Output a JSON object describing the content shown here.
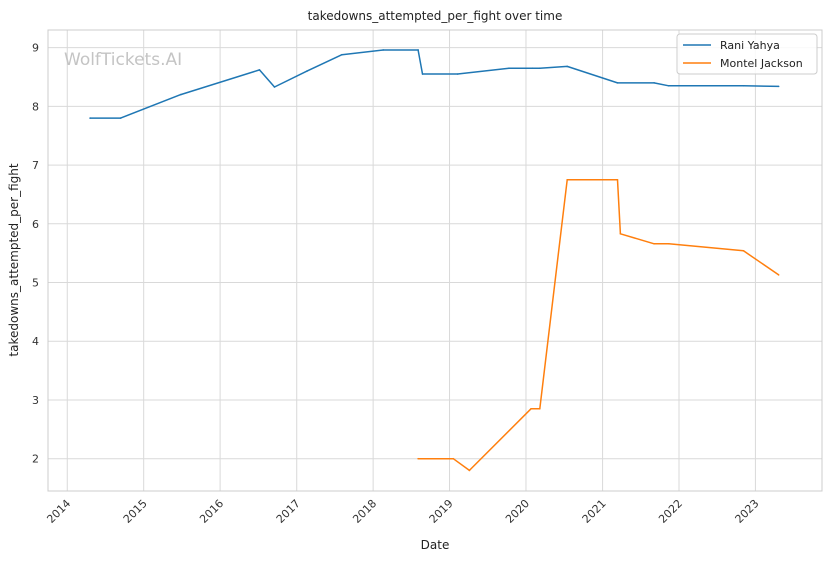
{
  "chart_data": {
    "type": "line",
    "title": "takedowns_attempted_per_fight over time",
    "xlabel": "Date",
    "ylabel": "takedowns_attempted_per_fight",
    "watermark": "WolfTickets.AI",
    "x_ticks": [
      "2014",
      "2015",
      "2016",
      "2017",
      "2018",
      "2019",
      "2020",
      "2021",
      "2022",
      "2023"
    ],
    "y_ticks": [
      "2",
      "3",
      "4",
      "5",
      "6",
      "7",
      "8",
      "9"
    ],
    "xlim": [
      "2013-10-01",
      "2023-11-15"
    ],
    "ylim": [
      1.45,
      9.3
    ],
    "grid": true,
    "legend_position": "top-right",
    "colors": {
      "Rani Yahya": "#1f77b4",
      "Montel Jackson": "#ff7f0e"
    },
    "series": [
      {
        "name": "Rani Yahya",
        "x": [
          "2014-04-20",
          "2014-09-13",
          "2015-06-27",
          "2016-07-07",
          "2016-09-17",
          "2017-02-19",
          "2017-08-05",
          "2018-02-18",
          "2018-08-04",
          "2018-08-25",
          "2019-02-09",
          "2019-10-12",
          "2020-02-01",
          "2020-03-07",
          "2020-07-16",
          "2021-03-13",
          "2021-09-04",
          "2021-11-13",
          "2022-11-05",
          "2023-04-22"
        ],
        "values": [
          7.8,
          7.8,
          8.2,
          8.62,
          8.33,
          8.6,
          8.88,
          8.96,
          8.96,
          8.55,
          8.55,
          8.65,
          8.65,
          8.65,
          8.68,
          8.4,
          8.4,
          8.35,
          8.35,
          8.34
        ]
      },
      {
        "name": "Montel Jackson",
        "x": [
          "2018-08-04",
          "2019-01-19",
          "2019-04-06",
          "2020-01-25",
          "2020-03-07",
          "2020-07-16",
          "2021-03-13",
          "2021-03-27",
          "2021-09-04",
          "2021-11-13",
          "2022-11-05",
          "2023-04-22"
        ],
        "values": [
          2.0,
          2.0,
          1.8,
          2.85,
          2.85,
          6.75,
          6.75,
          5.83,
          5.66,
          5.66,
          5.54,
          5.13
        ]
      }
    ]
  }
}
